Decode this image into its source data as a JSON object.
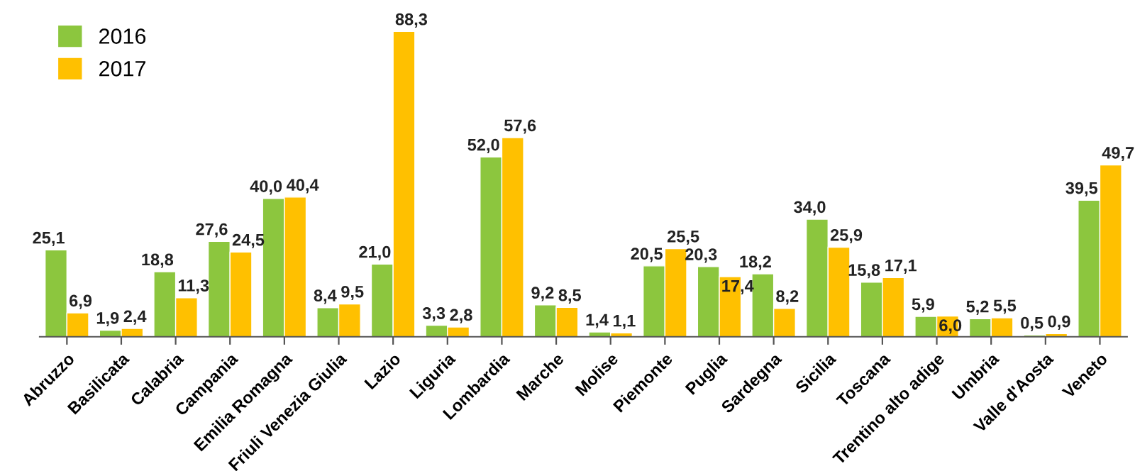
{
  "chart_data": {
    "type": "bar",
    "categories": [
      "Abruzzo",
      "Basilicata",
      "Calabria",
      "Campania",
      "Emilia Romagna",
      "Friuli Venezia Giulia",
      "Lazio",
      "Liguria",
      "Lombardia",
      "Marche",
      "Molise",
      "Piemonte",
      "Puglia",
      "Sardegna",
      "Sicilia",
      "Toscana",
      "Trentino alto adige",
      "Umbria",
      "Valle d'Aosta",
      "Veneto"
    ],
    "series": [
      {
        "name": "2016",
        "color": "#8cc63e",
        "values": [
          25.1,
          1.9,
          18.8,
          27.6,
          40.0,
          8.4,
          21.0,
          3.3,
          52.0,
          9.2,
          1.4,
          20.5,
          20.3,
          18.2,
          34.0,
          15.8,
          5.9,
          5.2,
          0.5,
          39.5
        ],
        "value_labels": [
          "25,1",
          "1,9",
          "18,8",
          "27,6",
          "40,0",
          "8,4",
          "21,0",
          "3,3",
          "52,0",
          "9,2",
          "1,4",
          "20,5",
          "20,3",
          "18,2",
          "34,0",
          "15,8",
          "5,9",
          "5,2",
          "0,5",
          "39,5"
        ]
      },
      {
        "name": "2017",
        "color": "#ffc000",
        "values": [
          6.9,
          2.4,
          11.3,
          24.5,
          40.4,
          9.5,
          88.3,
          2.8,
          57.6,
          8.5,
          1.1,
          25.5,
          17.4,
          8.2,
          25.9,
          17.1,
          6.0,
          5.5,
          0.9,
          49.7
        ],
        "value_labels": [
          "6,9",
          "2,4",
          "11,3",
          "24,5",
          "40,4",
          "9,5",
          "88,3",
          "2,8",
          "57,6",
          "8,5",
          "1,1",
          "25,5",
          "17,4",
          "8,2",
          "25,9",
          "17,1",
          "6,0",
          "5,5",
          "0,9",
          "49,7"
        ]
      }
    ],
    "legend": "top left",
    "grid": false
  }
}
